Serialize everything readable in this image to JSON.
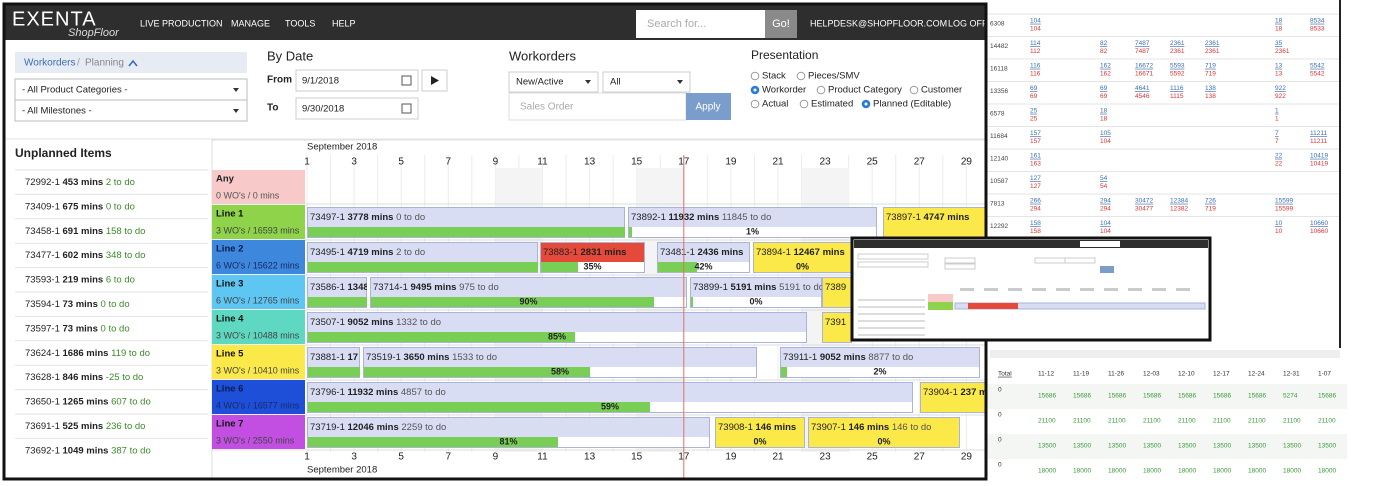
{
  "nav": {
    "brand": "EXENTA",
    "product": "ShopFloor",
    "items": [
      "LIVE PRODUCTION",
      "MANAGE",
      "TOOLS",
      "HELP"
    ],
    "search_placeholder": "Search for...",
    "go": "Go!",
    "user": "HELPDESK@SHOPFLOOR.COM",
    "logout": "LOG OFF"
  },
  "breadcrumb": {
    "items": [
      "Workorders",
      "Planning"
    ],
    "separator": "/"
  },
  "filters": [
    "- All Product Categories -",
    "- All Milestones -"
  ],
  "by_date": {
    "title": "By Date",
    "from_label": "From",
    "from": "9/1/2018",
    "to_label": "To",
    "to": "9/30/2018"
  },
  "workorders": {
    "title": "Workorders",
    "status": "New/Active",
    "scope": "All",
    "search_placeholder": "Sales Order",
    "apply": "Apply"
  },
  "presentation": {
    "title": "Presentation",
    "options": [
      [
        {
          "label": "Stack",
          "selected": false
        },
        {
          "label": "Pieces/SMV",
          "selected": false
        }
      ],
      [
        {
          "label": "Workorder",
          "selected": true
        },
        {
          "label": "Product Category",
          "selected": false
        },
        {
          "label": "Customer",
          "selected": false
        }
      ],
      [
        {
          "label": "Actual",
          "selected": false
        },
        {
          "label": "Estimated",
          "selected": false
        },
        {
          "label": "Planned (Editable)",
          "selected": true
        }
      ]
    ]
  },
  "unplanned": {
    "title": "Unplanned Items",
    "items": [
      {
        "id": "72992-1",
        "mins": "453 mins",
        "todo": "2 to do"
      },
      {
        "id": "73409-1",
        "mins": "675 mins",
        "todo": "0 to do"
      },
      {
        "id": "73458-1",
        "mins": "691 mins",
        "todo": "158 to do"
      },
      {
        "id": "73477-1",
        "mins": "602 mins",
        "todo": "348 to do"
      },
      {
        "id": "73593-1",
        "mins": "219 mins",
        "todo": "6 to do"
      },
      {
        "id": "73594-1",
        "mins": "73 mins",
        "todo": "0 to do"
      },
      {
        "id": "73597-1",
        "mins": "73 mins",
        "todo": "0 to do"
      },
      {
        "id": "73624-1",
        "mins": "1686 mins",
        "todo": "119 to do"
      },
      {
        "id": "73628-1",
        "mins": "846 mins",
        "todo": "-25 to do"
      },
      {
        "id": "73650-1",
        "mins": "1265 mins",
        "todo": "607 to do"
      },
      {
        "id": "73691-1",
        "mins": "525 mins",
        "todo": "236 to do"
      },
      {
        "id": "73692-1",
        "mins": "1049 mins",
        "todo": "387 to do"
      }
    ]
  },
  "gantt": {
    "month": "September 2018",
    "days": [
      1,
      3,
      5,
      7,
      9,
      11,
      13,
      15,
      17,
      19,
      21,
      23,
      25,
      27,
      29
    ],
    "any": {
      "name": "Any",
      "summary": "0 WO's / 0 mins"
    },
    "lines": [
      {
        "name": "Line 1",
        "summary": "3 WO's / 16593 mins",
        "color": "#8ed34a",
        "bars": [
          {
            "id": "73497-1",
            "mins": "3778 mins",
            "todo": "0 to do",
            "color": "#d8ddf4"
          },
          {
            "id": "73892-1",
            "mins": "11932 mins",
            "todo": "11845 to do",
            "progress": "1%",
            "color": "#d8ddf4"
          },
          {
            "id": "73897-1",
            "mins": "4747 mins",
            "color": "#fbe94a"
          }
        ]
      },
      {
        "name": "Line 2",
        "summary": "6 WO's / 15622 mins",
        "color": "#3d88dd",
        "bars": [
          {
            "id": "73495-1",
            "mins": "4719 mins",
            "todo": "2 to do",
            "color": "#d8ddf4"
          },
          {
            "id": "73883-1",
            "mins": "2831 mins",
            "progress": "35%",
            "color": "#e5493a"
          },
          {
            "id": "73481-1",
            "mins": "2436 mins",
            "progress": "42%",
            "color": "#d8ddf4"
          },
          {
            "id": "73894-1",
            "mins": "12467 mins",
            "progress": "0%",
            "color": "#fbe94a"
          }
        ]
      },
      {
        "name": "Line 3",
        "summary": "6 WO's / 12765 mins",
        "color": "#5ec6f2",
        "bars": [
          {
            "id": "73586-1",
            "mins": "1348",
            "color": "#d8ddf4"
          },
          {
            "id": "73714-1",
            "mins": "9495 mins",
            "todo": "975 to do",
            "progress": "90%",
            "color": "#d8ddf4"
          },
          {
            "id": "73899-1",
            "mins": "5191 mins",
            "todo": "5191 to do",
            "progress": "0%",
            "color": "#d8ddf4"
          },
          {
            "id": "7389",
            "color": "#fbe94a"
          }
        ]
      },
      {
        "name": "Line 4",
        "summary": "3 WO's / 10488 mins",
        "color": "#5fd8c2",
        "bars": [
          {
            "id": "73507-1",
            "mins": "9052 mins",
            "todo": "1332 to do",
            "progress": "85%",
            "color": "#d8ddf4"
          },
          {
            "id": "7391",
            "color": "#fbe94a"
          }
        ]
      },
      {
        "name": "Line 5",
        "summary": "3 WO's / 10410 mins",
        "color": "#fbe94a",
        "bars": [
          {
            "id": "73881-1",
            "mins": "17",
            "color": "#d8ddf4"
          },
          {
            "id": "73519-1",
            "mins": "3650 mins",
            "todo": "1533 to do",
            "progress": "58%",
            "color": "#d8ddf4"
          },
          {
            "id": "73911-1",
            "mins": "9052 mins",
            "todo": "8877 to do",
            "progress": "2%",
            "color": "#d8ddf4"
          }
        ]
      },
      {
        "name": "Line 6",
        "summary": "4 WO's / 16577 mins",
        "color": "#1e4fd8",
        "bars": [
          {
            "id": "73796-1",
            "mins": "11932 mins",
            "todo": "4857 to do",
            "progress": "59%",
            "color": "#d8ddf4"
          },
          {
            "id": "73904-1",
            "mins": "237 m",
            "color": "#fbe94a"
          }
        ]
      },
      {
        "name": "Line 7",
        "summary": "3 WO's / 2550 mins",
        "color": "#c24fe2",
        "bars": [
          {
            "id": "73719-1",
            "mins": "12046 mins",
            "todo": "2259 to do",
            "progress": "81%",
            "color": "#d8ddf4"
          },
          {
            "id": "73908-1",
            "mins": "146 mins",
            "progress": "0%",
            "color": "#fbe94a"
          },
          {
            "id": "73907-1",
            "mins": "146 mins",
            "todo": "146 to do",
            "progress": "0%",
            "color": "#fbe94a"
          }
        ]
      }
    ]
  },
  "sheet": {
    "rows": [
      {
        "left": "6308",
        "cells": [
          [
            "104",
            "104"
          ],
          null,
          null,
          null,
          null,
          null,
          null,
          [
            "18",
            "18"
          ],
          [
            "8534",
            "8533"
          ]
        ]
      },
      {
        "left": "14482",
        "cells": [
          [
            "114",
            "112"
          ],
          null,
          [
            "82",
            "82"
          ],
          [
            "7487",
            "7487"
          ],
          [
            "2361",
            "2361"
          ],
          [
            "2361",
            "2361"
          ],
          null,
          [
            "35",
            "2361"
          ],
          null
        ]
      },
      {
        "left": "16118",
        "cells": [
          [
            "116",
            "116"
          ],
          null,
          [
            "162",
            "162"
          ],
          [
            "16672",
            "16671"
          ],
          [
            "5593",
            "5592"
          ],
          [
            "719",
            "719"
          ],
          null,
          [
            "13",
            "13"
          ],
          [
            "5542",
            "5542"
          ]
        ]
      },
      {
        "left": "13356",
        "cells": [
          [
            "69",
            "69"
          ],
          null,
          [
            "69",
            "69"
          ],
          [
            "4641",
            "4546"
          ],
          [
            "1116",
            "1115"
          ],
          [
            "138",
            "138"
          ],
          null,
          [
            "922",
            "922"
          ],
          null
        ]
      },
      {
        "left": "6578",
        "cells": [
          [
            "25",
            "25"
          ],
          null,
          [
            "18",
            "18"
          ],
          null,
          null,
          null,
          null,
          [
            "1",
            "1"
          ],
          null
        ]
      },
      {
        "left": "11684",
        "cells": [
          [
            "157",
            "157"
          ],
          null,
          [
            "105",
            "104"
          ],
          null,
          null,
          null,
          null,
          [
            "7",
            "7"
          ],
          [
            "11211",
            "11211"
          ]
        ]
      },
      {
        "left": "12140",
        "cells": [
          [
            "161",
            "163"
          ],
          null,
          null,
          null,
          null,
          null,
          null,
          [
            "22",
            "22"
          ],
          [
            "10419",
            "10419"
          ]
        ]
      },
      {
        "left": "10587",
        "cells": [
          [
            "127",
            "127"
          ],
          null,
          [
            "54",
            "54"
          ],
          null,
          null,
          null,
          null,
          null,
          null
        ]
      },
      {
        "left": "7813",
        "cells": [
          [
            "266",
            "294"
          ],
          null,
          [
            "294",
            "294"
          ],
          [
            "30472",
            "30477"
          ],
          [
            "12384",
            "12382"
          ],
          [
            "726",
            "719"
          ],
          null,
          [
            "15599",
            "15599"
          ],
          null
        ]
      },
      {
        "left": "12292",
        "cells": [
          [
            "158",
            "158"
          ],
          null,
          [
            "104",
            "104"
          ],
          null,
          null,
          null,
          null,
          [
            "10",
            "10"
          ],
          [
            "10660",
            "10660"
          ]
        ]
      }
    ],
    "weeks": [
      "Total",
      "11-12",
      "11-19",
      "11-26",
      "12-03",
      "12-10",
      "12-17",
      "12-24",
      "12-31",
      "1-07"
    ],
    "totals": [
      {
        "total": "0",
        "values": [
          "15686",
          "15686",
          "15686",
          "15686",
          "15686",
          "15686",
          "15686",
          "5274",
          "15686"
        ]
      },
      {
        "total": "0",
        "values": [
          "21100",
          "21100",
          "21100",
          "21100",
          "21100",
          "21100",
          "21100",
          "21100",
          "21100"
        ]
      },
      {
        "total": "0",
        "values": [
          "13500",
          "13500",
          "13500",
          "13500",
          "13500",
          "13500",
          "13500",
          "13500",
          "13500"
        ]
      },
      {
        "total": "0",
        "values": [
          "18000",
          "18000",
          "18000",
          "18000",
          "18000",
          "18000",
          "18000",
          "18000",
          "18000"
        ]
      }
    ]
  }
}
